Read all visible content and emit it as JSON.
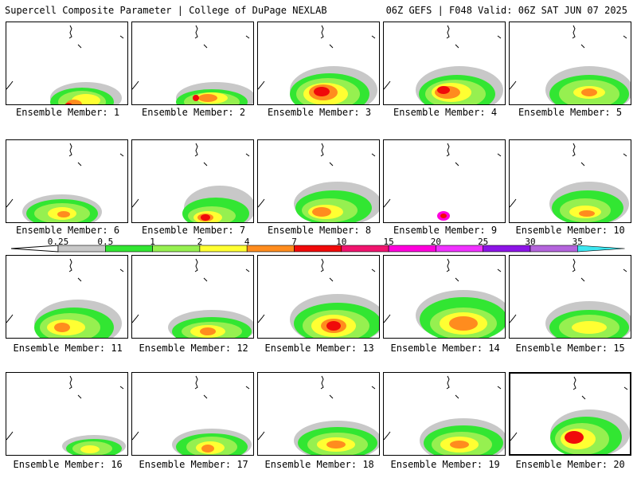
{
  "header": {
    "title": "Supercell Composite Parameter | College of DuPage NEXLAB",
    "run_info": "06Z GEFS | F048 Valid: 06Z SAT JUN 07 2025"
  },
  "panels": [
    {
      "label": "Ensemble Member: 1"
    },
    {
      "label": "Ensemble Member: 2"
    },
    {
      "label": "Ensemble Member: 3"
    },
    {
      "label": "Ensemble Member: 4"
    },
    {
      "label": "Ensemble Member: 5"
    },
    {
      "label": "Ensemble Member: 6"
    },
    {
      "label": "Ensemble Member: 7"
    },
    {
      "label": "Ensemble Member: 8"
    },
    {
      "label": "Ensemble Member: 9"
    },
    {
      "label": "Ensemble Member: 10"
    },
    {
      "label": "Ensemble Member: 11"
    },
    {
      "label": "Ensemble Member: 12"
    },
    {
      "label": "Ensemble Member: 13"
    },
    {
      "label": "Ensemble Member: 14"
    },
    {
      "label": "Ensemble Member: 15"
    },
    {
      "label": "Ensemble Member: 16"
    },
    {
      "label": "Ensemble Member: 17"
    },
    {
      "label": "Ensemble Member: 18"
    },
    {
      "label": "Ensemble Member: 19"
    },
    {
      "label": "Ensemble Member: 20",
      "selected": true
    }
  ],
  "colorbar": {
    "labels": [
      "0.25",
      "0.5",
      "1",
      "2",
      "4",
      "7",
      "10",
      "15",
      "20",
      "25",
      "30",
      "35"
    ],
    "colors": [
      "#c8c8c8",
      "#32e632",
      "#96f050",
      "#ffff32",
      "#ff8c1e",
      "#f00a0a",
      "#f0146e",
      "#ff00dc",
      "#f032ff",
      "#8c14e6",
      "#b464dc",
      "#3ce6f0"
    ]
  },
  "legend_colors": {
    "gray": "#c8c8c8",
    "green": "#32e632",
    "lime": "#96f050",
    "yellow": "#ffff32",
    "orange": "#ff8c1e",
    "red": "#f00a0a",
    "magenta": "#ff00dc"
  }
}
